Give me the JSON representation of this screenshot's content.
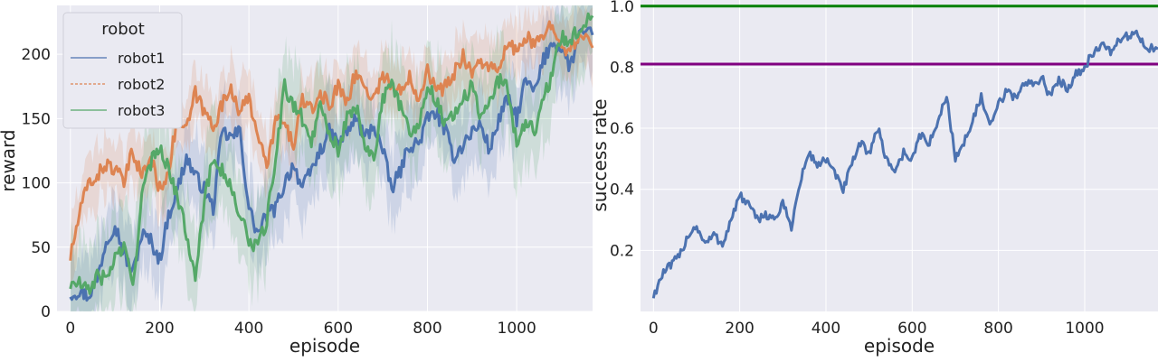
{
  "chart_data": [
    {
      "type": "line",
      "xlabel": "episode",
      "ylabel": "reward",
      "xlim": [
        -30,
        1170
      ],
      "ylim": [
        0,
        238
      ],
      "xticks": [
        0,
        200,
        400,
        600,
        800,
        1000
      ],
      "yticks": [
        0,
        50,
        100,
        150,
        200
      ],
      "xtick_labels": [
        "0",
        "200",
        "400",
        "600",
        "800",
        "1000"
      ],
      "ytick_labels": [
        "0",
        "50",
        "100",
        "150",
        "200"
      ],
      "grid": true,
      "legend": {
        "title": "robot",
        "placement": "top-left"
      },
      "series": [
        {
          "name": "robot1",
          "color": "#4c72b0",
          "band_width": 28,
          "points": [
            [
              0,
              14
            ],
            [
              20,
              16
            ],
            [
              40,
              12
            ],
            [
              60,
              25
            ],
            [
              80,
              55
            ],
            [
              100,
              68
            ],
            [
              120,
              45
            ],
            [
              140,
              30
            ],
            [
              160,
              60
            ],
            [
              180,
              55
            ],
            [
              200,
              40
            ],
            [
              220,
              75
            ],
            [
              240,
              95
            ],
            [
              260,
              120
            ],
            [
              280,
              105
            ],
            [
              300,
              95
            ],
            [
              320,
              80
            ],
            [
              340,
              140
            ],
            [
              360,
              135
            ],
            [
              380,
              140
            ],
            [
              400,
              80
            ],
            [
              420,
              60
            ],
            [
              440,
              75
            ],
            [
              460,
              80
            ],
            [
              480,
              100
            ],
            [
              500,
              115
            ],
            [
              520,
              95
            ],
            [
              540,
              110
            ],
            [
              560,
              125
            ],
            [
              580,
              140
            ],
            [
              600,
              130
            ],
            [
              620,
              140
            ],
            [
              640,
              150
            ],
            [
              660,
              135
            ],
            [
              680,
              145
            ],
            [
              700,
              125
            ],
            [
              720,
              95
            ],
            [
              740,
              110
            ],
            [
              760,
              130
            ],
            [
              780,
              130
            ],
            [
              800,
              150
            ],
            [
              820,
              155
            ],
            [
              840,
              140
            ],
            [
              860,
              120
            ],
            [
              880,
              130
            ],
            [
              900,
              140
            ],
            [
              920,
              145
            ],
            [
              940,
              125
            ],
            [
              960,
              150
            ],
            [
              980,
              165
            ],
            [
              1000,
              150
            ],
            [
              1020,
              180
            ],
            [
              1040,
              170
            ],
            [
              1060,
              195
            ],
            [
              1080,
              210
            ],
            [
              1100,
              205
            ],
            [
              1120,
              190
            ],
            [
              1140,
              215
            ],
            [
              1170,
              215
            ]
          ]
        },
        {
          "name": "robot2",
          "color": "#dd8452",
          "band_width": 22,
          "points": [
            [
              0,
              42
            ],
            [
              20,
              75
            ],
            [
              40,
              100
            ],
            [
              60,
              105
            ],
            [
              80,
              115
            ],
            [
              100,
              110
            ],
            [
              120,
              100
            ],
            [
              140,
              125
            ],
            [
              160,
              105
            ],
            [
              180,
              120
            ],
            [
              200,
              95
            ],
            [
              220,
              110
            ],
            [
              240,
              150
            ],
            [
              260,
              140
            ],
            [
              280,
              170
            ],
            [
              300,
              155
            ],
            [
              320,
              145
            ],
            [
              340,
              160
            ],
            [
              360,
              175
            ],
            [
              380,
              155
            ],
            [
              400,
              165
            ],
            [
              420,
              140
            ],
            [
              440,
              110
            ],
            [
              460,
              150
            ],
            [
              480,
              145
            ],
            [
              500,
              130
            ],
            [
              520,
              165
            ],
            [
              540,
              155
            ],
            [
              560,
              170
            ],
            [
              580,
              160
            ],
            [
              600,
              175
            ],
            [
              620,
              165
            ],
            [
              640,
              185
            ],
            [
              660,
              175
            ],
            [
              680,
              165
            ],
            [
              700,
              185
            ],
            [
              720,
              175
            ],
            [
              740,
              170
            ],
            [
              760,
              185
            ],
            [
              780,
              165
            ],
            [
              800,
              190
            ],
            [
              820,
              170
            ],
            [
              840,
              175
            ],
            [
              860,
              185
            ],
            [
              880,
              200
            ],
            [
              900,
              185
            ],
            [
              920,
              195
            ],
            [
              940,
              190
            ],
            [
              960,
              185
            ],
            [
              980,
              210
            ],
            [
              1000,
              200
            ],
            [
              1020,
              215
            ],
            [
              1040,
              205
            ],
            [
              1060,
              215
            ],
            [
              1080,
              225
            ],
            [
              1100,
              210
            ],
            [
              1120,
              200
            ],
            [
              1140,
              215
            ],
            [
              1170,
              205
            ]
          ]
        },
        {
          "name": "robot3",
          "color": "#55a868",
          "band_width": 32,
          "points": [
            [
              0,
              20
            ],
            [
              20,
              22
            ],
            [
              40,
              15
            ],
            [
              60,
              28
            ],
            [
              80,
              25
            ],
            [
              100,
              42
            ],
            [
              120,
              50
            ],
            [
              140,
              20
            ],
            [
              160,
              90
            ],
            [
              180,
              115
            ],
            [
              200,
              130
            ],
            [
              220,
              110
            ],
            [
              240,
              90
            ],
            [
              260,
              60
            ],
            [
              280,
              30
            ],
            [
              300,
              85
            ],
            [
              320,
              120
            ],
            [
              340,
              110
            ],
            [
              360,
              95
            ],
            [
              380,
              75
            ],
            [
              400,
              55
            ],
            [
              420,
              50
            ],
            [
              440,
              70
            ],
            [
              460,
              120
            ],
            [
              480,
              175
            ],
            [
              500,
              160
            ],
            [
              520,
              150
            ],
            [
              540,
              130
            ],
            [
              560,
              165
            ],
            [
              580,
              140
            ],
            [
              600,
              125
            ],
            [
              620,
              150
            ],
            [
              640,
              160
            ],
            [
              660,
              130
            ],
            [
              680,
              120
            ],
            [
              700,
              165
            ],
            [
              720,
              175
            ],
            [
              740,
              160
            ],
            [
              760,
              140
            ],
            [
              780,
              145
            ],
            [
              800,
              175
            ],
            [
              820,
              165
            ],
            [
              840,
              145
            ],
            [
              860,
              155
            ],
            [
              880,
              165
            ],
            [
              900,
              175
            ],
            [
              920,
              150
            ],
            [
              940,
              165
            ],
            [
              960,
              180
            ],
            [
              980,
              175
            ],
            [
              1000,
              130
            ],
            [
              1020,
              150
            ],
            [
              1040,
              140
            ],
            [
              1060,
              165
            ],
            [
              1080,
              185
            ],
            [
              1100,
              215
            ],
            [
              1120,
              210
            ],
            [
              1140,
              220
            ],
            [
              1170,
              230
            ]
          ]
        }
      ]
    },
    {
      "type": "line",
      "xlabel": "episode",
      "ylabel": "success rate",
      "xlim": [
        -30,
        1170
      ],
      "ylim": [
        0.0,
        1.02
      ],
      "xticks": [
        0,
        200,
        400,
        600,
        800,
        1000
      ],
      "yticks": [
        0.2,
        0.4,
        0.6,
        0.8,
        1.0
      ],
      "xtick_labels": [
        "0",
        "200",
        "400",
        "600",
        "800",
        "1000"
      ],
      "ytick_labels": [
        "0.2",
        "0.4",
        "0.6",
        "0.8",
        "1.0"
      ],
      "grid": true,
      "reference_lines": [
        {
          "y": 1.0,
          "color": "#008000"
        },
        {
          "y": 0.81,
          "color": "#800080"
        }
      ],
      "series": [
        {
          "name": "",
          "color": "#4c72b0",
          "points": [
            [
              0,
              0.05
            ],
            [
              20,
              0.12
            ],
            [
              40,
              0.15
            ],
            [
              60,
              0.18
            ],
            [
              80,
              0.25
            ],
            [
              100,
              0.28
            ],
            [
              120,
              0.22
            ],
            [
              140,
              0.25
            ],
            [
              160,
              0.22
            ],
            [
              180,
              0.3
            ],
            [
              200,
              0.38
            ],
            [
              220,
              0.35
            ],
            [
              240,
              0.3
            ],
            [
              260,
              0.32
            ],
            [
              280,
              0.3
            ],
            [
              300,
              0.35
            ],
            [
              320,
              0.28
            ],
            [
              340,
              0.42
            ],
            [
              360,
              0.52
            ],
            [
              380,
              0.48
            ],
            [
              400,
              0.5
            ],
            [
              420,
              0.45
            ],
            [
              440,
              0.4
            ],
            [
              460,
              0.48
            ],
            [
              480,
              0.55
            ],
            [
              500,
              0.52
            ],
            [
              520,
              0.6
            ],
            [
              540,
              0.5
            ],
            [
              560,
              0.46
            ],
            [
              580,
              0.52
            ],
            [
              600,
              0.5
            ],
            [
              620,
              0.58
            ],
            [
              640,
              0.55
            ],
            [
              660,
              0.62
            ],
            [
              680,
              0.71
            ],
            [
              700,
              0.5
            ],
            [
              720,
              0.55
            ],
            [
              740,
              0.63
            ],
            [
              760,
              0.7
            ],
            [
              780,
              0.6
            ],
            [
              800,
              0.68
            ],
            [
              820,
              0.72
            ],
            [
              840,
              0.7
            ],
            [
              860,
              0.75
            ],
            [
              880,
              0.74
            ],
            [
              900,
              0.77
            ],
            [
              920,
              0.7
            ],
            [
              940,
              0.76
            ],
            [
              960,
              0.73
            ],
            [
              980,
              0.78
            ],
            [
              1000,
              0.8
            ],
            [
              1020,
              0.85
            ],
            [
              1040,
              0.87
            ],
            [
              1060,
              0.85
            ],
            [
              1080,
              0.89
            ],
            [
              1100,
              0.9
            ],
            [
              1120,
              0.92
            ],
            [
              1140,
              0.86
            ],
            [
              1170,
              0.86
            ]
          ]
        }
      ]
    }
  ]
}
